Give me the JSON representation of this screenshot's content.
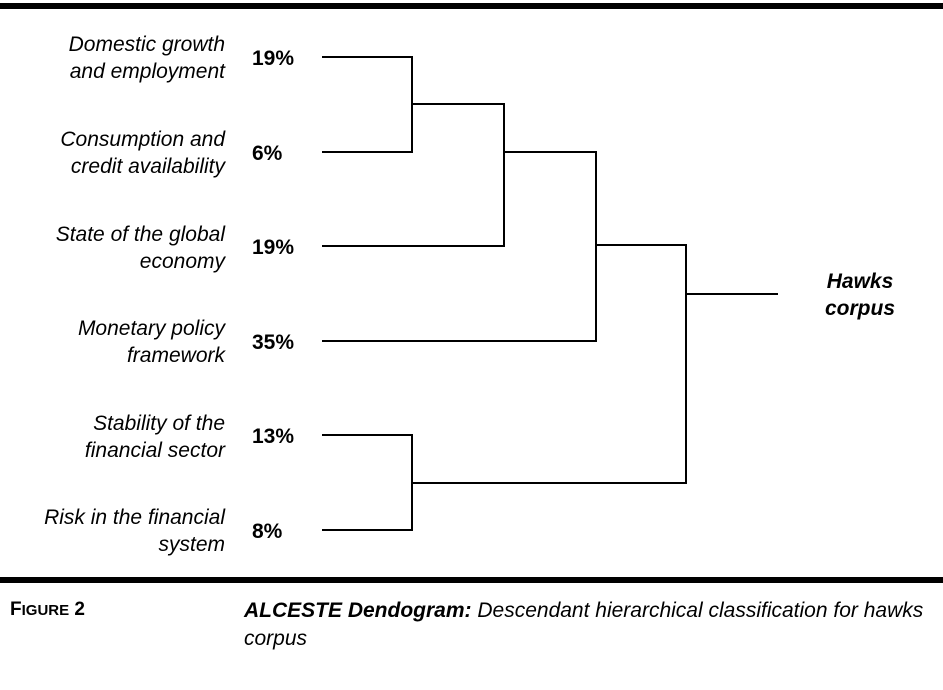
{
  "leaves": [
    {
      "label": "Domestic growth\nand employment",
      "percent": "19%"
    },
    {
      "label": "Consumption and\ncredit availability",
      "percent": "6%"
    },
    {
      "label": "State of the global\neconomy",
      "percent": "19%"
    },
    {
      "label": "Monetary policy\nframework",
      "percent": "35%"
    },
    {
      "label": "Stability of the\nfinancial sector",
      "percent": "13%"
    },
    {
      "label": "Risk in the financial\nsystem",
      "percent": "8%"
    }
  ],
  "root": {
    "label": "Hawks\ncorpus"
  },
  "figure": {
    "label_initial": "F",
    "label_rest": "IGURE",
    "number": "2",
    "caption_title": "ALCESTE Dendogram:",
    "caption_text": "Descendant hierarchical classification for hawks corpus"
  }
}
